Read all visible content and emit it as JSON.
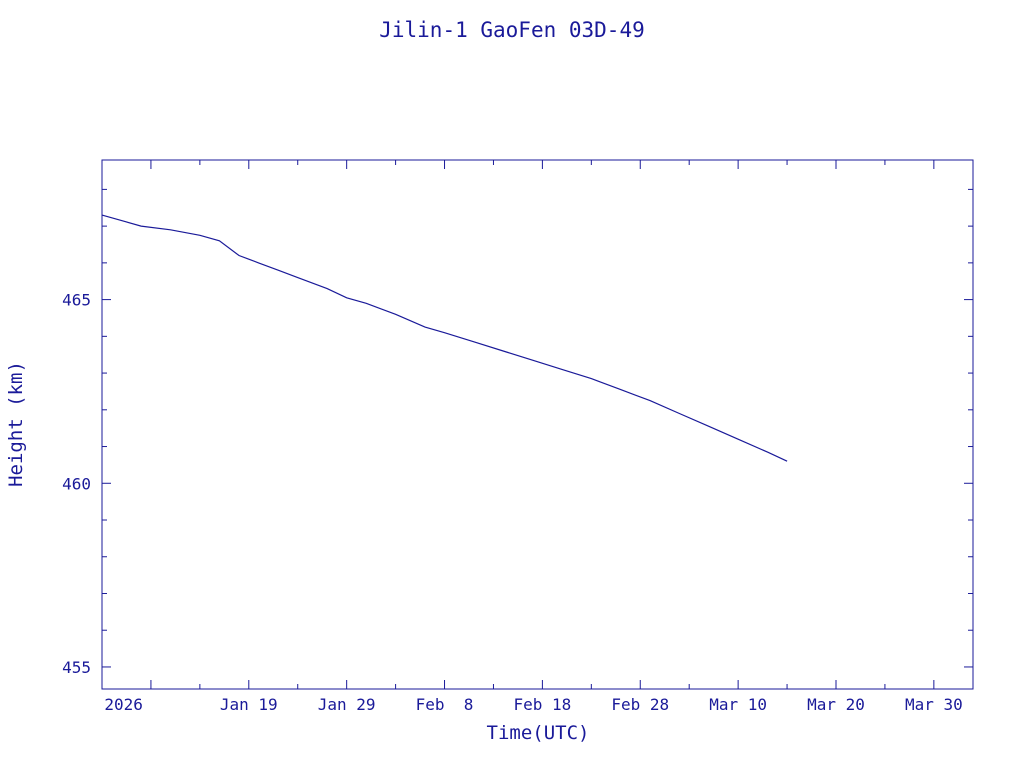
{
  "chart_data": {
    "type": "line",
    "title": "Jilin-1 GaoFen 03D-49",
    "xlabel": "Time(UTC)",
    "ylabel": "Height (km)",
    "color": "#1a1a99",
    "xlim": [
      "2026-01-04",
      "2026-04-03"
    ],
    "ylim": [
      454.4,
      468.8
    ],
    "x_ticks": [
      {
        "date": "2026-01-09",
        "label": "2026"
      },
      {
        "date": "2026-01-19",
        "label": "Jan 19"
      },
      {
        "date": "2026-01-29",
        "label": "Jan 29"
      },
      {
        "date": "2026-02-08",
        "label": "Feb  8"
      },
      {
        "date": "2026-02-18",
        "label": "Feb 18"
      },
      {
        "date": "2026-02-28",
        "label": "Feb 28"
      },
      {
        "date": "2026-03-10",
        "label": "Mar 10"
      },
      {
        "date": "2026-03-20",
        "label": "Mar 20"
      },
      {
        "date": "2026-03-30",
        "label": "Mar 30"
      }
    ],
    "y_ticks": [
      {
        "value": 455,
        "label": "455"
      },
      {
        "value": 460,
        "label": "460"
      },
      {
        "value": 465,
        "label": "465"
      }
    ],
    "series": [
      {
        "x": [
          "2026-01-04",
          "2026-01-06",
          "2026-01-08",
          "2026-01-11",
          "2026-01-14",
          "2026-01-16",
          "2026-01-18",
          "2026-01-19",
          "2026-01-20",
          "2026-01-22",
          "2026-01-24",
          "2026-01-27",
          "2026-01-29",
          "2026-01-31",
          "2026-02-03",
          "2026-02-06",
          "2026-02-08",
          "2026-02-11",
          "2026-02-14",
          "2026-02-17",
          "2026-02-20",
          "2026-02-23",
          "2026-02-26",
          "2026-03-01",
          "2026-03-04",
          "2026-03-07",
          "2026-03-10",
          "2026-03-13",
          "2026-03-15"
        ],
        "values": [
          467.3,
          467.15,
          467.0,
          466.9,
          466.75,
          466.6,
          466.2,
          466.1,
          466.0,
          465.8,
          465.6,
          465.3,
          465.05,
          464.9,
          464.6,
          464.25,
          464.1,
          463.85,
          463.6,
          463.35,
          463.1,
          462.85,
          462.55,
          462.25,
          461.9,
          461.55,
          461.2,
          460.85,
          460.6
        ]
      }
    ]
  }
}
